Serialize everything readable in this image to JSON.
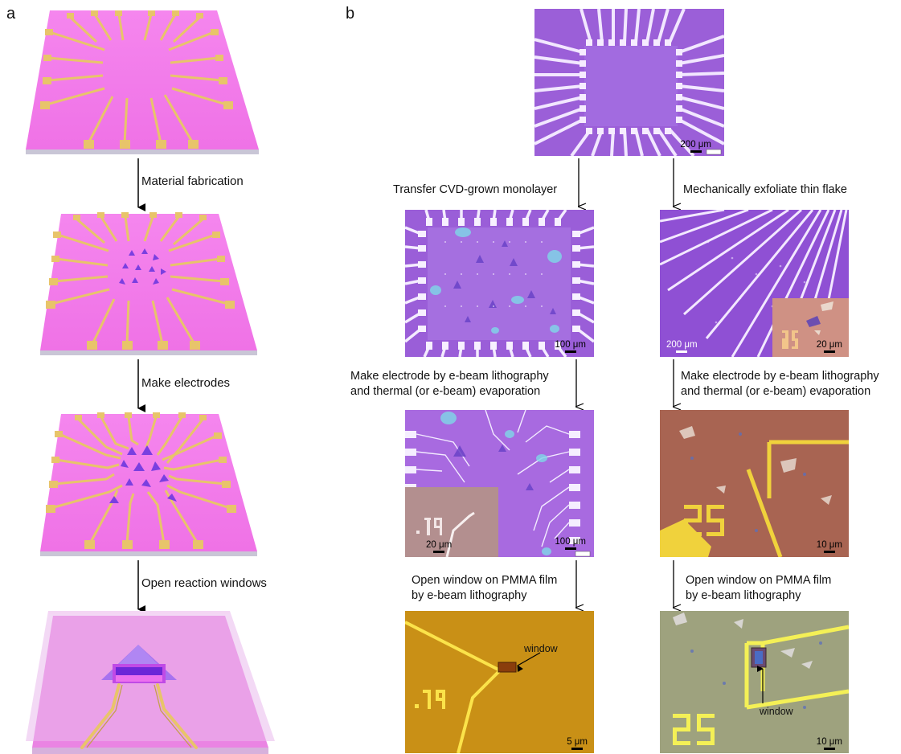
{
  "panels": {
    "a": "a",
    "b": "b"
  },
  "panel_a": {
    "steps": [
      "Material fabrication",
      "Make electrodes",
      "Open reaction windows"
    ]
  },
  "panel_b": {
    "left_column": {
      "step1": "Transfer CVD-grown monolayer",
      "step2_line1": "Make electrode by e-beam lithography",
      "step2_line2": "and thermal (or e-beam) evaporation",
      "step3_line1": "Open window on PMMA film",
      "step3_line2": "by e-beam lithography"
    },
    "right_column": {
      "step1": "Mechanically exfoliate thin flake",
      "step2_line1": "Make electrode by e-beam lithography",
      "step2_line2": "and thermal (or e-beam) evaporation",
      "step3_line1": "Open window on PMMA film",
      "step3_line2": "by e-beam lithography"
    },
    "scale_bars": {
      "top": "200 μm",
      "left1": "100 μm",
      "right1_main": "200 μm",
      "right1_inset": "20 μm",
      "left2_main": "100 μm",
      "left2_inset": "20 μm",
      "right2": "10 μm",
      "left3": "5 μm",
      "right3": "10 μm"
    },
    "annotations": {
      "window_left": "window",
      "window_right": "window",
      "number_19": ".19",
      "number_25": "25"
    }
  },
  "colors": {
    "substrate_pink": "#f07ce8",
    "electrode_gold": "#e8c46a",
    "flake_purple": "#7a3fe0",
    "optical_purple": "#9a5ed8",
    "optical_brown": "#a86452",
    "optical_orange": "#c99016",
    "optical_gray": "#9ea27e"
  }
}
